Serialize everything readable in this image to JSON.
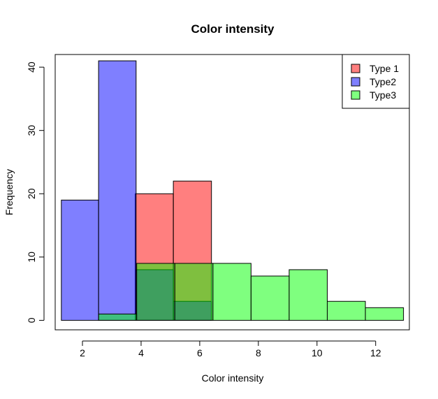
{
  "chart_data": {
    "type": "histogram",
    "title": "Color intensity",
    "xlabel": "Color intensity",
    "ylabel": "Frequency",
    "xlim": [
      1.07,
      13.15
    ],
    "ylim": [
      -1.5,
      42.0
    ],
    "xticks": [
      2,
      4,
      6,
      8,
      10,
      12
    ],
    "yticks": [
      0,
      10,
      20,
      30,
      40
    ],
    "grid": false,
    "legend_position": "top-right",
    "series": [
      {
        "name": "Type 1",
        "color": "#ff0000",
        "alpha": 0.5,
        "bins": [
          {
            "x0": 3.8,
            "x1": 5.1,
            "count": 20
          },
          {
            "x0": 5.1,
            "x1": 6.4,
            "count": 22
          }
        ]
      },
      {
        "name": "Type2",
        "color": "#0000ff",
        "alpha": 0.5,
        "bins": [
          {
            "x0": 1.28,
            "x1": 2.55,
            "count": 19
          },
          {
            "x0": 2.55,
            "x1": 3.83,
            "count": 41
          },
          {
            "x0": 3.83,
            "x1": 5.1,
            "count": 8
          },
          {
            "x0": 5.1,
            "x1": 6.4,
            "count": 3
          }
        ]
      },
      {
        "name": "Type3",
        "color": "#00ff00",
        "alpha": 0.5,
        "bins": [
          {
            "x0": 2.55,
            "x1": 3.85,
            "count": 1
          },
          {
            "x0": 3.85,
            "x1": 5.15,
            "count": 9
          },
          {
            "x0": 5.15,
            "x1": 6.45,
            "count": 9
          },
          {
            "x0": 6.45,
            "x1": 7.75,
            "count": 9
          },
          {
            "x0": 7.75,
            "x1": 9.05,
            "count": 7
          },
          {
            "x0": 9.05,
            "x1": 10.35,
            "count": 8
          },
          {
            "x0": 10.35,
            "x1": 11.65,
            "count": 3
          },
          {
            "x0": 11.65,
            "x1": 12.95,
            "count": 2
          }
        ]
      }
    ]
  }
}
